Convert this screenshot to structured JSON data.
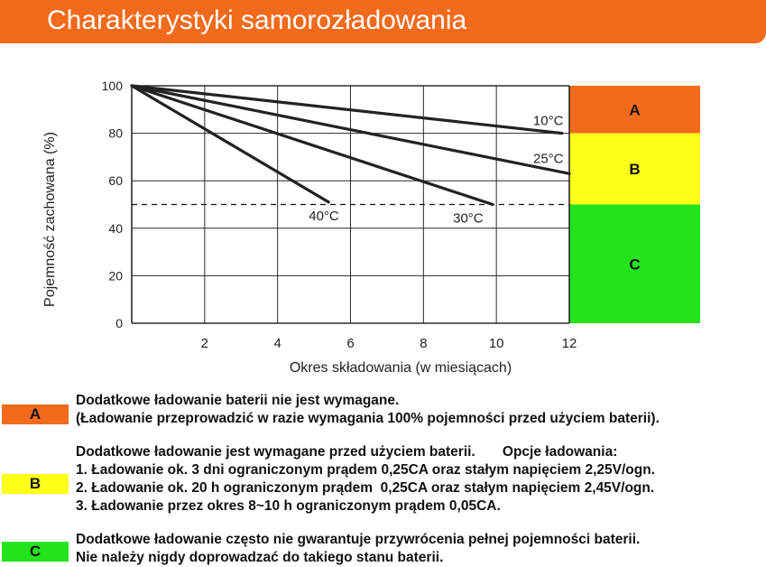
{
  "title": "Charakterystyki samorozładowania",
  "chart_data": {
    "type": "line",
    "xlabel": "Okres składowania (w miesiącach)",
    "ylabel": "Pojemność zachowana (%)",
    "xlim": [
      0,
      12
    ],
    "ylim": [
      0,
      100
    ],
    "x_ticks": [
      "2",
      "4",
      "6",
      "8",
      "10",
      "12"
    ],
    "y_ticks": [
      "0",
      "20",
      "40",
      "60",
      "80",
      "100"
    ],
    "grid": true,
    "reference_line": {
      "y": 50,
      "style": "dashed"
    },
    "series": [
      {
        "name": "10°C",
        "x": [
          0,
          11.8
        ],
        "y": [
          100,
          80
        ]
      },
      {
        "name": "25°C",
        "x": [
          0,
          12
        ],
        "y": [
          100,
          63
        ]
      },
      {
        "name": "30°C",
        "x": [
          0,
          9.9
        ],
        "y": [
          100,
          50
        ]
      },
      {
        "name": "40°C",
        "x": [
          0,
          5.4
        ],
        "y": [
          100,
          51
        ]
      }
    ],
    "zones": [
      {
        "label": "A",
        "y_range": [
          80,
          100
        ],
        "color": "#f26a1b"
      },
      {
        "label": "B",
        "y_range": [
          50,
          80
        ],
        "color": "#ffff1a"
      },
      {
        "label": "C",
        "y_range": [
          0,
          50
        ],
        "color": "#22e31c"
      }
    ]
  },
  "legend": [
    {
      "label": "A",
      "color": "#f26a1b",
      "lines": [
        "Dodatkowe ładowanie baterii nie jest wymagane.",
        "(Ładowanie przeprowadzić w razie wymagania 100% pojemności przed użyciem baterii)."
      ]
    },
    {
      "label": "B",
      "color": "#ffff1a",
      "lines": [
        "Dodatkowe ładowanie jest wymagane przed użyciem baterii.       Opcje ładowania:",
        "1. Ładowanie ok. 3 dni ograniczonym prądem 0,25CA oraz stałym napięciem 2,25V/ogn.",
        "2. Ładowanie ok. 20 h ograniczonym prądem  0,25CA oraz stałym napięciem 2,45V/ogn.",
        "3. Ładowanie przez okres 8~10 h ograniczonym prądem 0,05CA."
      ]
    },
    {
      "label": "C",
      "color": "#22e31c",
      "lines": [
        "Dodatkowe ładowanie często nie gwarantuje przywrócenia pełnej pojemności baterii.",
        "Nie należy nigdy doprowadzać do takiego stanu baterii."
      ]
    }
  ]
}
